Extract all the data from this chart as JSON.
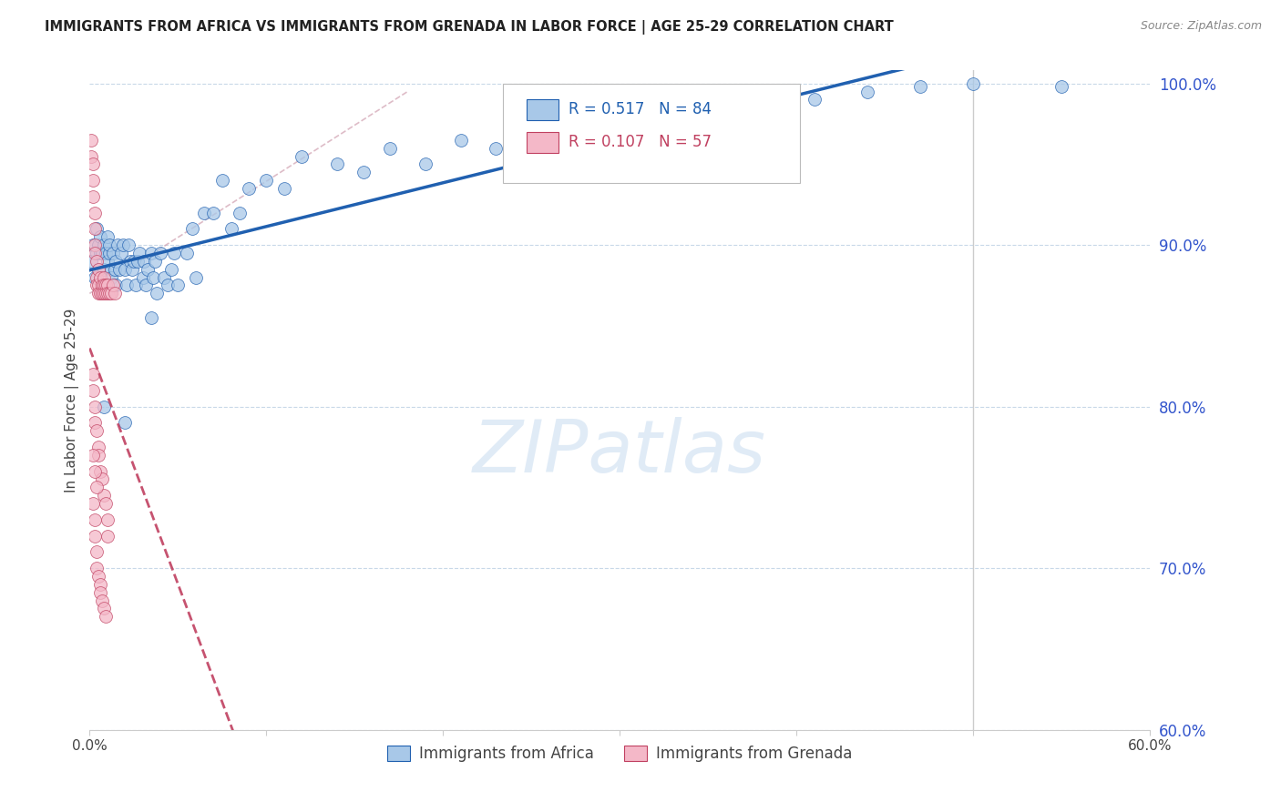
{
  "title": "IMMIGRANTS FROM AFRICA VS IMMIGRANTS FROM GRENADA IN LABOR FORCE | AGE 25-29 CORRELATION CHART",
  "source": "Source: ZipAtlas.com",
  "ylabel": "In Labor Force | Age 25-29",
  "xlim": [
    0.0,
    0.6
  ],
  "ylim": [
    0.6,
    1.008
  ],
  "xtick_vals": [
    0.0,
    0.1,
    0.2,
    0.3,
    0.4,
    0.5,
    0.6
  ],
  "xtick_labels": [
    "0.0%",
    "",
    "",
    "",
    "",
    "",
    "60.0%"
  ],
  "ytick_vals": [
    0.6,
    0.7,
    0.8,
    0.9,
    1.0
  ],
  "ytick_labels": [
    "60.0%",
    "70.0%",
    "80.0%",
    "90.0%",
    "100.0%"
  ],
  "legend_R_africa": "R = 0.517",
  "legend_N_africa": "N = 84",
  "legend_R_grenada": "R = 0.107",
  "legend_N_grenada": "N = 57",
  "legend_label_africa": "Immigrants from Africa",
  "legend_label_grenada": "Immigrants from Grenada",
  "africa_color": "#a8c8e8",
  "grenada_color": "#f4b8c8",
  "trendline_africa_color": "#2060b0",
  "trendline_grenada_color": "#c04060",
  "watermark": "ZIPatlas",
  "africa_x": [
    0.001,
    0.002,
    0.003,
    0.004,
    0.004,
    0.005,
    0.005,
    0.006,
    0.006,
    0.007,
    0.007,
    0.008,
    0.008,
    0.009,
    0.009,
    0.01,
    0.01,
    0.011,
    0.011,
    0.012,
    0.012,
    0.013,
    0.014,
    0.015,
    0.015,
    0.016,
    0.017,
    0.018,
    0.019,
    0.02,
    0.021,
    0.022,
    0.023,
    0.024,
    0.025,
    0.026,
    0.027,
    0.028,
    0.03,
    0.031,
    0.032,
    0.033,
    0.035,
    0.036,
    0.037,
    0.038,
    0.04,
    0.042,
    0.044,
    0.046,
    0.048,
    0.05,
    0.055,
    0.058,
    0.06,
    0.065,
    0.07,
    0.075,
    0.08,
    0.085,
    0.09,
    0.1,
    0.11,
    0.12,
    0.14,
    0.155,
    0.17,
    0.19,
    0.21,
    0.23,
    0.25,
    0.27,
    0.3,
    0.32,
    0.35,
    0.38,
    0.41,
    0.44,
    0.47,
    0.5,
    0.008,
    0.02,
    0.035,
    0.55
  ],
  "africa_y": [
    0.89,
    0.9,
    0.88,
    0.895,
    0.91,
    0.885,
    0.9,
    0.895,
    0.905,
    0.875,
    0.895,
    0.9,
    0.885,
    0.895,
    0.875,
    0.89,
    0.905,
    0.895,
    0.9,
    0.885,
    0.88,
    0.895,
    0.885,
    0.89,
    0.875,
    0.9,
    0.885,
    0.895,
    0.9,
    0.885,
    0.875,
    0.9,
    0.89,
    0.885,
    0.89,
    0.875,
    0.89,
    0.895,
    0.88,
    0.89,
    0.875,
    0.885,
    0.895,
    0.88,
    0.89,
    0.87,
    0.895,
    0.88,
    0.875,
    0.885,
    0.895,
    0.875,
    0.895,
    0.91,
    0.88,
    0.92,
    0.92,
    0.94,
    0.91,
    0.92,
    0.935,
    0.94,
    0.935,
    0.955,
    0.95,
    0.945,
    0.96,
    0.95,
    0.965,
    0.96,
    0.97,
    0.97,
    0.975,
    0.975,
    0.98,
    0.985,
    0.99,
    0.995,
    0.998,
    1.0,
    0.8,
    0.79,
    0.855,
    0.998
  ],
  "grenada_x": [
    0.001,
    0.001,
    0.002,
    0.002,
    0.002,
    0.003,
    0.003,
    0.003,
    0.003,
    0.004,
    0.004,
    0.004,
    0.005,
    0.005,
    0.005,
    0.006,
    0.006,
    0.007,
    0.007,
    0.008,
    0.008,
    0.008,
    0.009,
    0.009,
    0.01,
    0.01,
    0.011,
    0.012,
    0.013,
    0.014,
    0.002,
    0.002,
    0.003,
    0.003,
    0.004,
    0.005,
    0.005,
    0.006,
    0.007,
    0.008,
    0.009,
    0.01,
    0.01,
    0.002,
    0.003,
    0.004,
    0.002,
    0.003,
    0.003,
    0.004,
    0.004,
    0.005,
    0.006,
    0.006,
    0.007,
    0.008,
    0.009
  ],
  "grenada_y": [
    0.965,
    0.955,
    0.95,
    0.94,
    0.93,
    0.92,
    0.91,
    0.9,
    0.895,
    0.89,
    0.88,
    0.875,
    0.885,
    0.875,
    0.87,
    0.88,
    0.87,
    0.875,
    0.87,
    0.88,
    0.875,
    0.87,
    0.875,
    0.87,
    0.875,
    0.87,
    0.87,
    0.87,
    0.875,
    0.87,
    0.82,
    0.81,
    0.8,
    0.79,
    0.785,
    0.775,
    0.77,
    0.76,
    0.755,
    0.745,
    0.74,
    0.73,
    0.72,
    0.77,
    0.76,
    0.75,
    0.74,
    0.73,
    0.72,
    0.71,
    0.7,
    0.695,
    0.69,
    0.685,
    0.68,
    0.675,
    0.67
  ]
}
